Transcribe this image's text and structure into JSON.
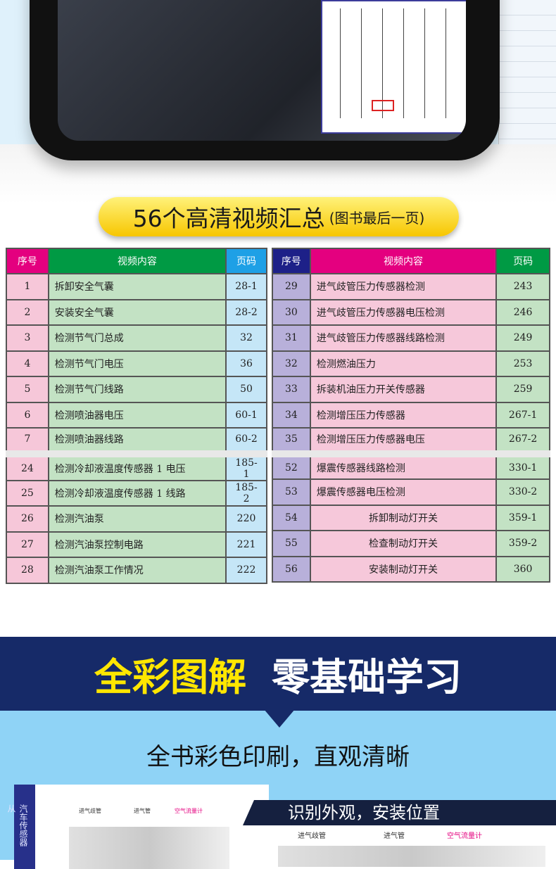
{
  "title": {
    "main": "56个高清视频汇总",
    "note": "(图书最后一页)"
  },
  "table_left": {
    "headers": [
      "序号",
      "视频内容",
      "页码"
    ],
    "rows": [
      [
        "1",
        "拆卸安全气囊",
        "28-1"
      ],
      [
        "2",
        "安装安全气囊",
        "28-2"
      ],
      [
        "3",
        "检测节气门总成",
        "32"
      ],
      [
        "4",
        "检测节气门电压",
        "36"
      ],
      [
        "5",
        "检测节气门线路",
        "50"
      ],
      [
        "6",
        "检测喷油器电压",
        "60-1"
      ],
      [
        "7",
        "检测喷油器线路",
        "60-2"
      ],
      [
        "24",
        "检测冷却液温度传感器 1 电压",
        "185-1"
      ],
      [
        "25",
        "检测冷却液温度传感器 1 线路",
        "185-2"
      ],
      [
        "26",
        "检测汽油泵",
        "220"
      ],
      [
        "27",
        "检测汽油泵控制电路",
        "221"
      ],
      [
        "28",
        "检测汽油泵工作情况",
        "222"
      ]
    ]
  },
  "table_right": {
    "headers": [
      "序号",
      "视频内容",
      "页码"
    ],
    "rows": [
      [
        "29",
        "进气歧管压力传感器检测",
        "243"
      ],
      [
        "30",
        "进气歧管压力传感器电压检测",
        "246"
      ],
      [
        "31",
        "进气歧管压力传感器线路检测",
        "249"
      ],
      [
        "32",
        "检测燃油压力",
        "253"
      ],
      [
        "33",
        "拆装机油压力开关传感器",
        "259"
      ],
      [
        "34",
        "检测增压压力传感器",
        "267-1"
      ],
      [
        "35",
        "检测增压压力传感器电压",
        "267-2"
      ],
      [
        "52",
        "爆震传感器线路检测",
        "330-1"
      ],
      [
        "53",
        "爆震传感器电压检测",
        "330-2"
      ],
      [
        "54",
        "拆卸制动灯开关",
        "359-1"
      ],
      [
        "55",
        "检查制动灯开关",
        "359-2"
      ],
      [
        "56",
        "安装制动灯开关",
        "360"
      ]
    ]
  },
  "banner": {
    "yellow": "全彩图解",
    "white": "零基础学习"
  },
  "subtitle": "全书彩色印刷，直观清晰",
  "book_preview": {
    "spine": "汽车传感器从",
    "labels": [
      "进气歧管",
      "进气管",
      "空气流量计"
    ],
    "section_title": "识别外观，安装位置"
  },
  "colors": {
    "magenta": "#e4007f",
    "green": "#009a44",
    "blue": "#1ea0e6",
    "navy": "#1d2088",
    "yellow": "#ffe600",
    "band": "#162a68"
  }
}
